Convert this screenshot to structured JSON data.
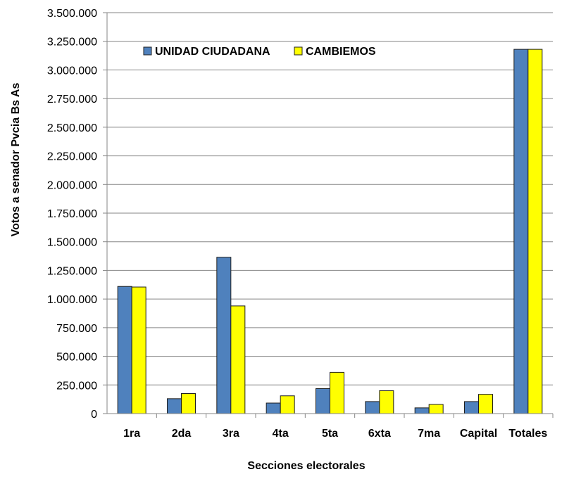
{
  "chart_data": {
    "type": "bar",
    "title": "",
    "xlabel": "Secciones electorales",
    "ylabel": "Votos a senador Pvcia Bs As",
    "ylim": [
      0,
      3500000
    ],
    "yticks": [
      0,
      250000,
      500000,
      750000,
      1000000,
      1250000,
      1500000,
      1750000,
      2000000,
      2250000,
      2500000,
      2750000,
      3000000,
      3250000,
      3500000
    ],
    "ytick_labels": [
      "0",
      "250.000",
      "500.000",
      "750.000",
      "1.000.000",
      "1.250.000",
      "1.500.000",
      "1.750.000",
      "2.000.000",
      "2.250.000",
      "2.500.000",
      "2.750.000",
      "3.000.000",
      "3.250.000",
      "3.500.000"
    ],
    "categories": [
      "1ra",
      "2da",
      "3ra",
      "4ta",
      "5ta",
      "6xta",
      "7ma",
      "Capital",
      "Totales"
    ],
    "series": [
      {
        "name": "UNIDAD CIUDADANA",
        "color": "#4F81BD",
        "values": [
          1110000,
          130000,
          1365000,
          92000,
          218000,
          105000,
          50000,
          105000,
          3180000
        ]
      },
      {
        "name": "CAMBIEMOS",
        "color": "#FFFF00",
        "values": [
          1105000,
          175000,
          940000,
          155000,
          360000,
          200000,
          80000,
          168000,
          3180000
        ]
      }
    ],
    "grid": "horizontal",
    "legend_position": "top-left"
  }
}
